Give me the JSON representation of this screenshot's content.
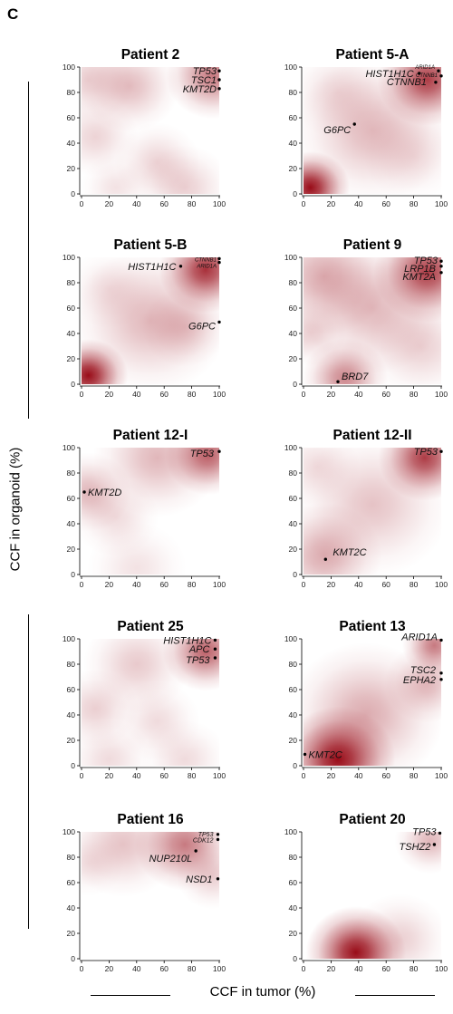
{
  "panel_letter": "C",
  "ylabel": "CCF in organoid (%)",
  "xlabel": "CCF in tumor (%)",
  "colors": {
    "density": "#990c18",
    "axis": "#000000",
    "point": "#000000"
  },
  "chart_data": [
    {
      "type": "heatmap",
      "title": "Patient 2",
      "xlim": [
        0,
        100
      ],
      "ylim": [
        0,
        100
      ],
      "xticks": [
        "0",
        "20",
        "40",
        "60",
        "80",
        "100"
      ],
      "yticks": [
        "0",
        "20",
        "40",
        "60",
        "80",
        "100"
      ],
      "points": [
        {
          "gene": "TP53",
          "x": 100,
          "y": 97
        },
        {
          "gene": "TSC1",
          "x": 100,
          "y": 90
        },
        {
          "gene": "KMT2D",
          "x": 100,
          "y": 83
        }
      ],
      "density": [
        {
          "x": 95,
          "y": 93,
          "s": 13,
          "w": 0.55
        },
        {
          "x": 5,
          "y": 90,
          "s": 13,
          "w": 0.2
        },
        {
          "x": 35,
          "y": 85,
          "s": 14,
          "w": 0.28
        },
        {
          "x": 10,
          "y": 45,
          "s": 12,
          "w": 0.18
        },
        {
          "x": 55,
          "y": 25,
          "s": 12,
          "w": 0.18
        },
        {
          "x": 75,
          "y": 5,
          "s": 13,
          "w": 0.2
        },
        {
          "x": 25,
          "y": 5,
          "s": 10,
          "w": 0.12
        }
      ]
    },
    {
      "type": "heatmap",
      "title": "Patient 5-A",
      "xlim": [
        0,
        100
      ],
      "ylim": [
        0,
        100
      ],
      "xticks": [
        "0",
        "20",
        "40",
        "60",
        "80",
        "100"
      ],
      "yticks": [
        "0",
        "20",
        "40",
        "60",
        "80",
        "100"
      ],
      "points": [
        {
          "gene": "HIST1H1C",
          "x": 84,
          "y": 95
        },
        {
          "gene": "ARID1A",
          "x": 98,
          "y": 97
        },
        {
          "gene": "CTNNB1",
          "x": 100,
          "y": 93
        },
        {
          "gene": "CTNNB1",
          "x": 96,
          "y": 88
        },
        {
          "gene": "G6PC",
          "x": 37,
          "y": 55
        }
      ],
      "density": [
        {
          "x": 5,
          "y": 5,
          "s": 11,
          "w": 1.0
        },
        {
          "x": 90,
          "y": 90,
          "s": 14,
          "w": 0.8
        },
        {
          "x": 50,
          "y": 50,
          "s": 22,
          "w": 0.3
        },
        {
          "x": 25,
          "y": 80,
          "s": 14,
          "w": 0.15
        },
        {
          "x": 80,
          "y": 30,
          "s": 14,
          "w": 0.12
        }
      ]
    },
    {
      "type": "heatmap",
      "title": "Patient 5-B",
      "xlim": [
        0,
        100
      ],
      "ylim": [
        0,
        100
      ],
      "xticks": [
        "0",
        "20",
        "40",
        "60",
        "80",
        "100"
      ],
      "yticks": [
        "0",
        "20",
        "40",
        "60",
        "80",
        "100"
      ],
      "points": [
        {
          "gene": "HIST1H1C",
          "x": 72,
          "y": 93
        },
        {
          "gene": "CTNNB1",
          "x": 100,
          "y": 99
        },
        {
          "gene": "ARID1A",
          "x": 100,
          "y": 96
        },
        {
          "gene": "G6PC",
          "x": 100,
          "y": 49
        }
      ],
      "density": [
        {
          "x": 5,
          "y": 7,
          "s": 11,
          "w": 1.0
        },
        {
          "x": 90,
          "y": 90,
          "s": 13,
          "w": 0.85
        },
        {
          "x": 50,
          "y": 50,
          "s": 22,
          "w": 0.3
        },
        {
          "x": 75,
          "y": 45,
          "s": 12,
          "w": 0.2
        },
        {
          "x": 20,
          "y": 75,
          "s": 12,
          "w": 0.12
        }
      ]
    },
    {
      "type": "heatmap",
      "title": "Patient 9",
      "xlim": [
        0,
        100
      ],
      "ylim": [
        0,
        100
      ],
      "xticks": [
        "0",
        "20",
        "40",
        "60",
        "80",
        "100"
      ],
      "yticks": [
        "0",
        "20",
        "40",
        "60",
        "80",
        "100"
      ],
      "points": [
        {
          "gene": "TP53",
          "x": 100,
          "y": 97
        },
        {
          "gene": "LRP1B",
          "x": 100,
          "y": 93
        },
        {
          "gene": "KMT2A",
          "x": 100,
          "y": 88
        },
        {
          "gene": "BRD7",
          "x": 25,
          "y": 2
        }
      ],
      "density": [
        {
          "x": 90,
          "y": 88,
          "s": 15,
          "w": 0.8
        },
        {
          "x": 15,
          "y": 85,
          "s": 18,
          "w": 0.35
        },
        {
          "x": 50,
          "y": 60,
          "s": 20,
          "w": 0.3
        },
        {
          "x": 30,
          "y": 5,
          "s": 12,
          "w": 0.5
        },
        {
          "x": 85,
          "y": 30,
          "s": 16,
          "w": 0.2
        },
        {
          "x": 5,
          "y": 40,
          "s": 10,
          "w": 0.2
        }
      ]
    },
    {
      "type": "heatmap",
      "title": "Patient 12-I",
      "xlim": [
        0,
        100
      ],
      "ylim": [
        0,
        100
      ],
      "xticks": [
        "0",
        "20",
        "40",
        "60",
        "80",
        "100"
      ],
      "yticks": [
        "0",
        "20",
        "40",
        "60",
        "80",
        "100"
      ],
      "points": [
        {
          "gene": "TP53",
          "x": 100,
          "y": 97
        },
        {
          "gene": "KMT2D",
          "x": 2,
          "y": 65
        }
      ],
      "density": [
        {
          "x": 92,
          "y": 94,
          "s": 12,
          "w": 0.65
        },
        {
          "x": 55,
          "y": 92,
          "s": 18,
          "w": 0.3
        },
        {
          "x": 5,
          "y": 65,
          "s": 12,
          "w": 0.3
        },
        {
          "x": 25,
          "y": 45,
          "s": 12,
          "w": 0.15
        },
        {
          "x": 40,
          "y": 5,
          "s": 14,
          "w": 0.12
        }
      ]
    },
    {
      "type": "heatmap",
      "title": "Patient 12-II",
      "xlim": [
        0,
        100
      ],
      "ylim": [
        0,
        100
      ],
      "xticks": [
        "0",
        "20",
        "40",
        "60",
        "80",
        "100"
      ],
      "yticks": [
        "0",
        "20",
        "40",
        "60",
        "80",
        "100"
      ],
      "points": [
        {
          "gene": "TP53",
          "x": 100,
          "y": 97
        },
        {
          "gene": "KMT2C",
          "x": 16,
          "y": 12
        }
      ],
      "density": [
        {
          "x": 88,
          "y": 92,
          "s": 13,
          "w": 0.8
        },
        {
          "x": 15,
          "y": 15,
          "s": 16,
          "w": 0.35
        },
        {
          "x": 50,
          "y": 55,
          "s": 22,
          "w": 0.25
        },
        {
          "x": 10,
          "y": 85,
          "s": 12,
          "w": 0.15
        }
      ]
    },
    {
      "type": "heatmap",
      "title": "Patient 25",
      "xlim": [
        0,
        100
      ],
      "ylim": [
        0,
        100
      ],
      "xticks": [
        "0",
        "20",
        "40",
        "60",
        "80",
        "100"
      ],
      "yticks": [
        "0",
        "20",
        "40",
        "60",
        "80",
        "100"
      ],
      "points": [
        {
          "gene": "HIST1H1C",
          "x": 97,
          "y": 99
        },
        {
          "gene": "APC",
          "x": 97,
          "y": 92
        },
        {
          "gene": "TP53",
          "x": 97,
          "y": 85
        }
      ],
      "density": [
        {
          "x": 90,
          "y": 90,
          "s": 12,
          "w": 0.65
        },
        {
          "x": 40,
          "y": 80,
          "s": 15,
          "w": 0.22
        },
        {
          "x": 10,
          "y": 45,
          "s": 12,
          "w": 0.2
        },
        {
          "x": 55,
          "y": 35,
          "s": 12,
          "w": 0.15
        },
        {
          "x": 20,
          "y": 5,
          "s": 12,
          "w": 0.15
        },
        {
          "x": 75,
          "y": 5,
          "s": 12,
          "w": 0.15
        }
      ]
    },
    {
      "type": "heatmap",
      "title": "Patient 13",
      "xlim": [
        0,
        100
      ],
      "ylim": [
        0,
        100
      ],
      "xticks": [
        "0",
        "20",
        "40",
        "60",
        "80",
        "100"
      ],
      "yticks": [
        "0",
        "20",
        "40",
        "60",
        "80",
        "100"
      ],
      "points": [
        {
          "gene": "ARID1A",
          "x": 100,
          "y": 99
        },
        {
          "gene": "TSC2",
          "x": 100,
          "y": 73
        },
        {
          "gene": "EPHA2",
          "x": 100,
          "y": 68
        },
        {
          "gene": "KMT2C",
          "x": 1,
          "y": 9
        }
      ],
      "density": [
        {
          "x": 25,
          "y": 5,
          "s": 16,
          "w": 1.0
        },
        {
          "x": 95,
          "y": 95,
          "s": 9,
          "w": 0.55
        },
        {
          "x": 45,
          "y": 40,
          "s": 22,
          "w": 0.35
        },
        {
          "x": 90,
          "y": 65,
          "s": 12,
          "w": 0.3
        }
      ]
    },
    {
      "type": "heatmap",
      "title": "Patient 16",
      "xlim": [
        0,
        100
      ],
      "ylim": [
        0,
        100
      ],
      "xticks": [
        "0",
        "20",
        "40",
        "60",
        "80",
        "100"
      ],
      "yticks": [
        "0",
        "20",
        "40",
        "60",
        "80",
        "100"
      ],
      "points": [
        {
          "gene": "TP53",
          "x": 99,
          "y": 98
        },
        {
          "gene": "CDK12",
          "x": 99,
          "y": 94
        },
        {
          "gene": "NUP210L",
          "x": 83,
          "y": 85
        },
        {
          "gene": "NSD1",
          "x": 99,
          "y": 63
        }
      ],
      "density": [
        {
          "x": 75,
          "y": 90,
          "s": 14,
          "w": 0.55
        },
        {
          "x": 30,
          "y": 90,
          "s": 16,
          "w": 0.25
        },
        {
          "x": 95,
          "y": 65,
          "s": 10,
          "w": 0.2
        },
        {
          "x": 5,
          "y": 75,
          "s": 10,
          "w": 0.12
        }
      ]
    },
    {
      "type": "heatmap",
      "title": "Patient 20",
      "xlim": [
        0,
        100
      ],
      "ylim": [
        0,
        100
      ],
      "xticks": [
        "0",
        "20",
        "40",
        "60",
        "80",
        "100"
      ],
      "yticks": [
        "0",
        "20",
        "40",
        "60",
        "80",
        "100"
      ],
      "points": [
        {
          "gene": "TP53",
          "x": 99,
          "y": 99
        },
        {
          "gene": "TSHZ2",
          "x": 95,
          "y": 90
        }
      ],
      "density": [
        {
          "x": 38,
          "y": 5,
          "s": 14,
          "w": 1.0
        },
        {
          "x": 92,
          "y": 93,
          "s": 10,
          "w": 0.3
        },
        {
          "x": 70,
          "y": 15,
          "s": 14,
          "w": 0.2
        }
      ]
    }
  ]
}
